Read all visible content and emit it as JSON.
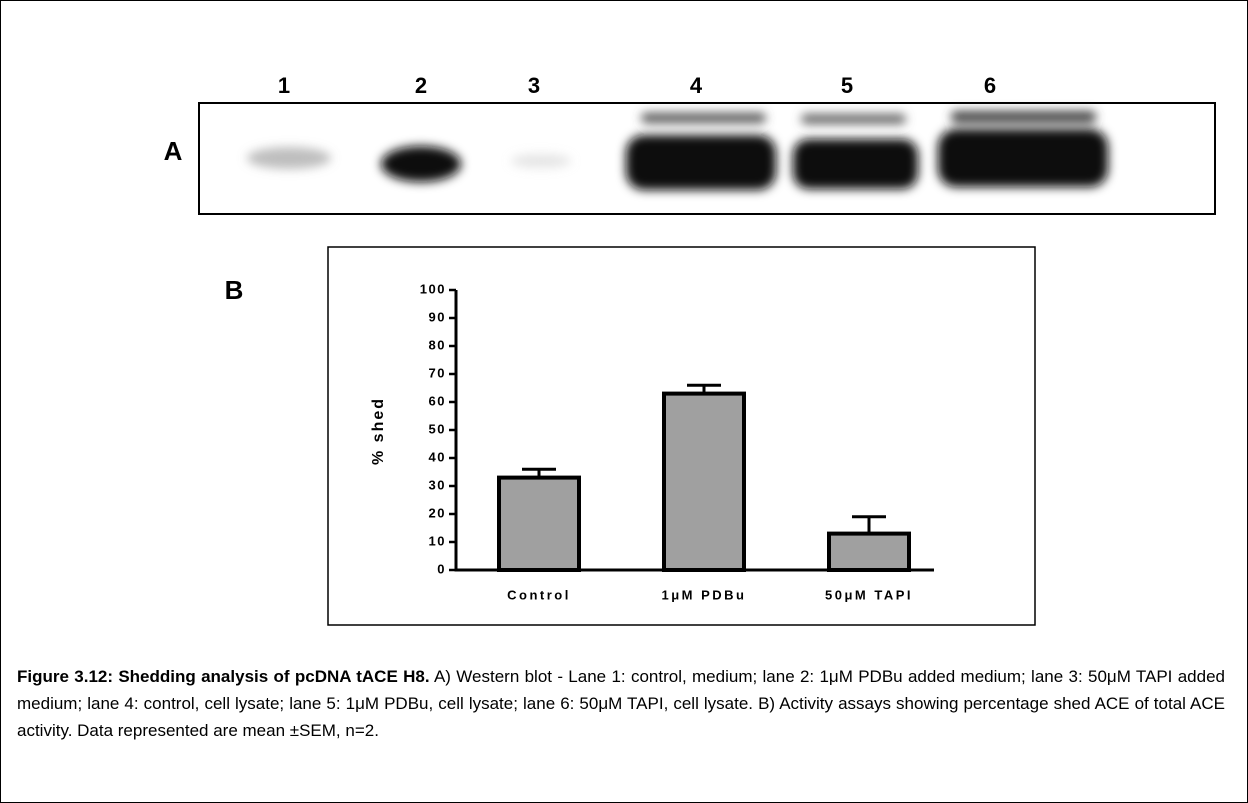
{
  "panels": {
    "a": "A",
    "b": "B"
  },
  "blot": {
    "lanes": [
      "1",
      "2",
      "3",
      "4",
      "5",
      "6"
    ]
  },
  "chart_data": {
    "type": "bar",
    "y_label": "% shed",
    "categories": [
      "Control",
      "1μM PDBu",
      "50μM TAPI"
    ],
    "values": [
      33,
      63,
      13
    ],
    "errors": [
      3,
      3,
      6
    ],
    "color": "#a0a0a0",
    "ylim": [
      0,
      100
    ],
    "yticks": [
      0,
      10,
      20,
      30,
      40,
      50,
      60,
      70,
      80,
      90,
      100
    ]
  },
  "caption": {
    "title": "Figure 3.12: Shedding analysis of pcDNA tACE H8.",
    "text": "A) Western blot - Lane 1: control, medium; lane 2: 1μM PDBu added medium; lane 3:  50μM TAPI added medium; lane 4: control, cell lysate; lane 5: 1μM PDBu, cell lysate; lane 6: 50μM TAPI, cell lysate. B) Activity assays showing percentage shed ACE of total ACE activity. Data represented are mean ±SEM, n=2."
  }
}
